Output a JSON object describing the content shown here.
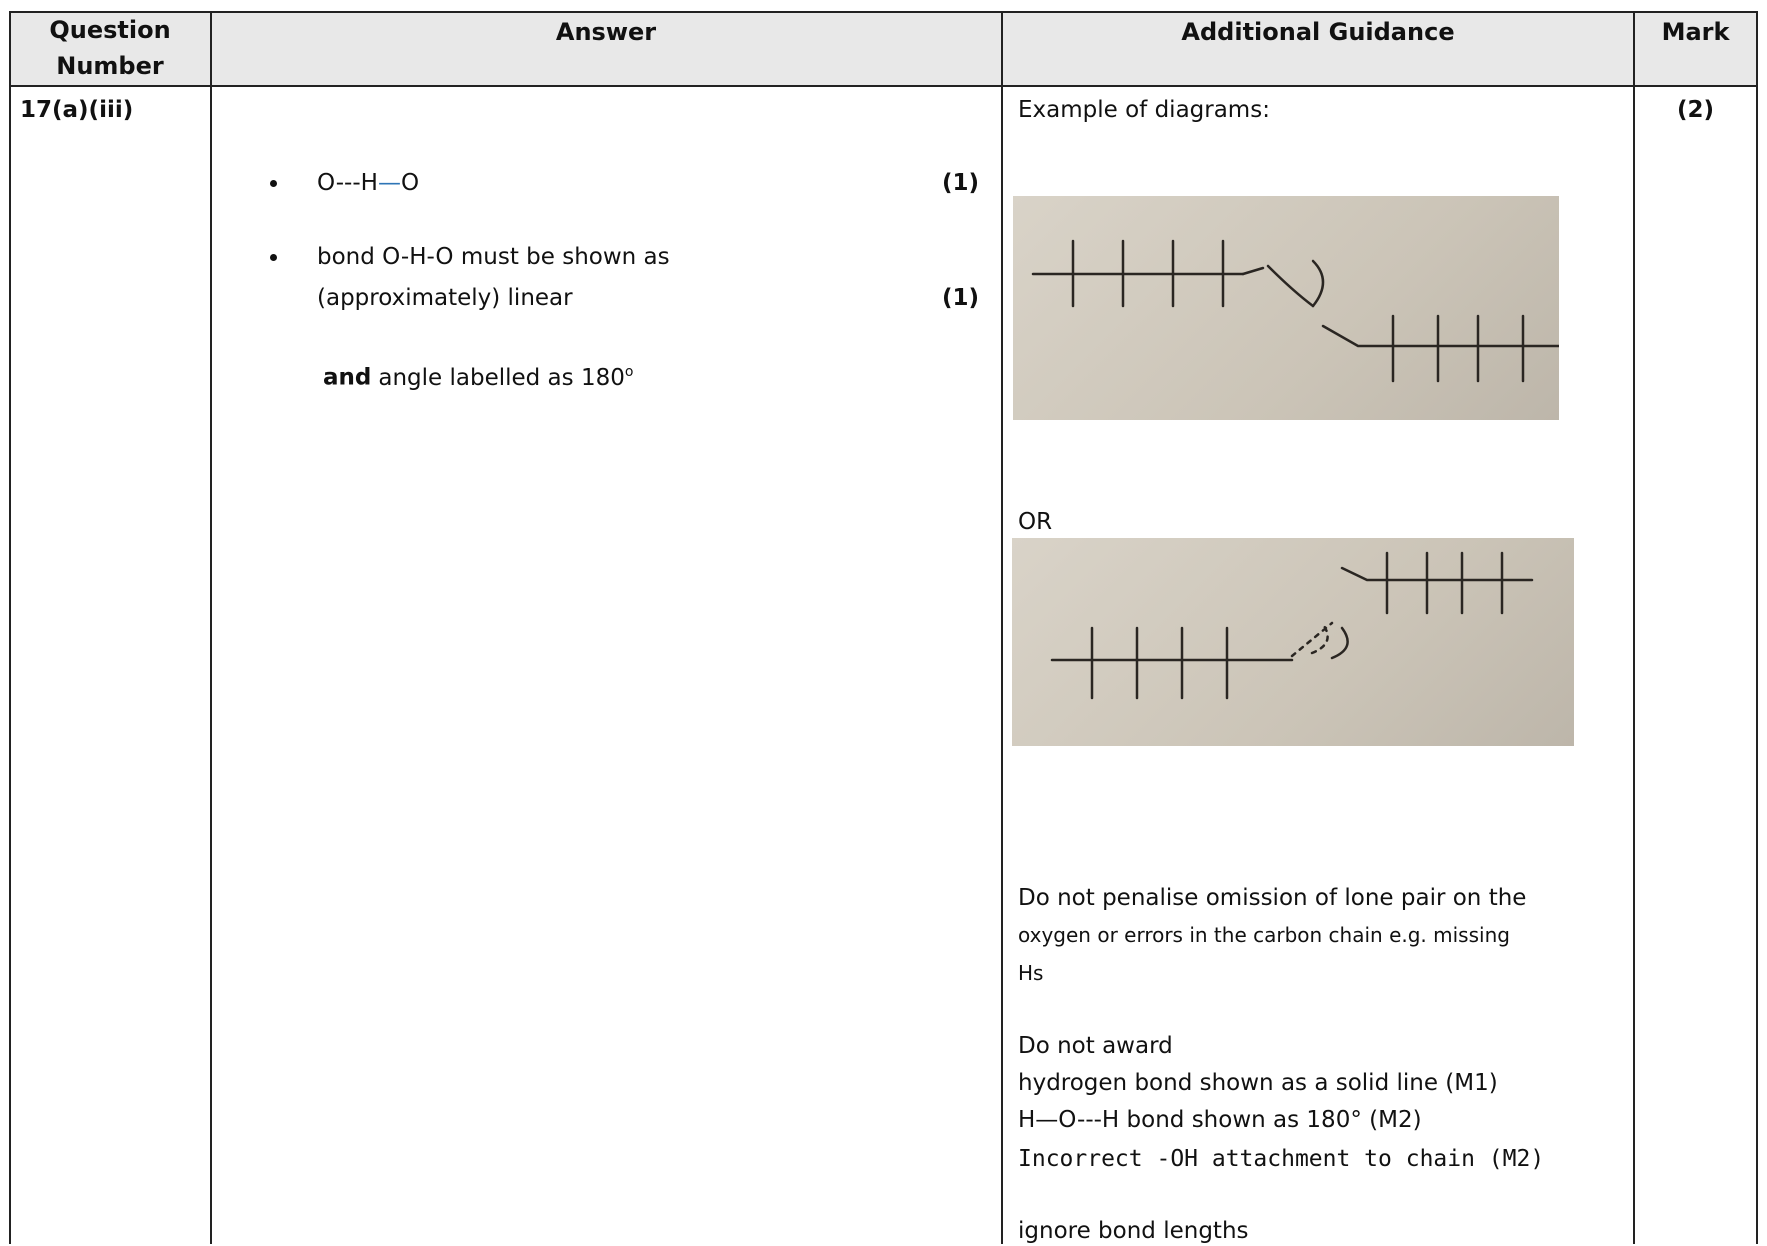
{
  "table": {
    "headers": [
      "Question Number",
      "Answer",
      "Additional Guidance",
      "Mark"
    ],
    "row": {
      "question": "17(a)(iii)",
      "answer": {
        "point1": {
          "left": "O---H",
          "bond": "—",
          "right": "O",
          "mark": "(1)"
        },
        "point2": {
          "lines": [
            "bond O-H-O must be shown as",
            "(approximately) linear"
          ],
          "mark": "(1)"
        },
        "condition": {
          "bold": "and",
          "text": "angle labelled as 180",
          "sup": "o"
        }
      },
      "guidance": {
        "intro": "Example of diagrams:",
        "or": "OR",
        "note": [
          "Do not penalise omission of lone pair on the",
          "oxygen or errors in the carbon chain e.g. missing",
          "Hs"
        ],
        "do_not_award": {
          "title": "Do not award",
          "items": [
            "hydrogen bond shown as a solid line (M1)",
            "H—O---H bond shown as 180° (M2)",
            "Incorrect -OH attachment to chain (M2)"
          ]
        },
        "ignore": "ignore bond lengths"
      },
      "mark": "(2)"
    }
  }
}
